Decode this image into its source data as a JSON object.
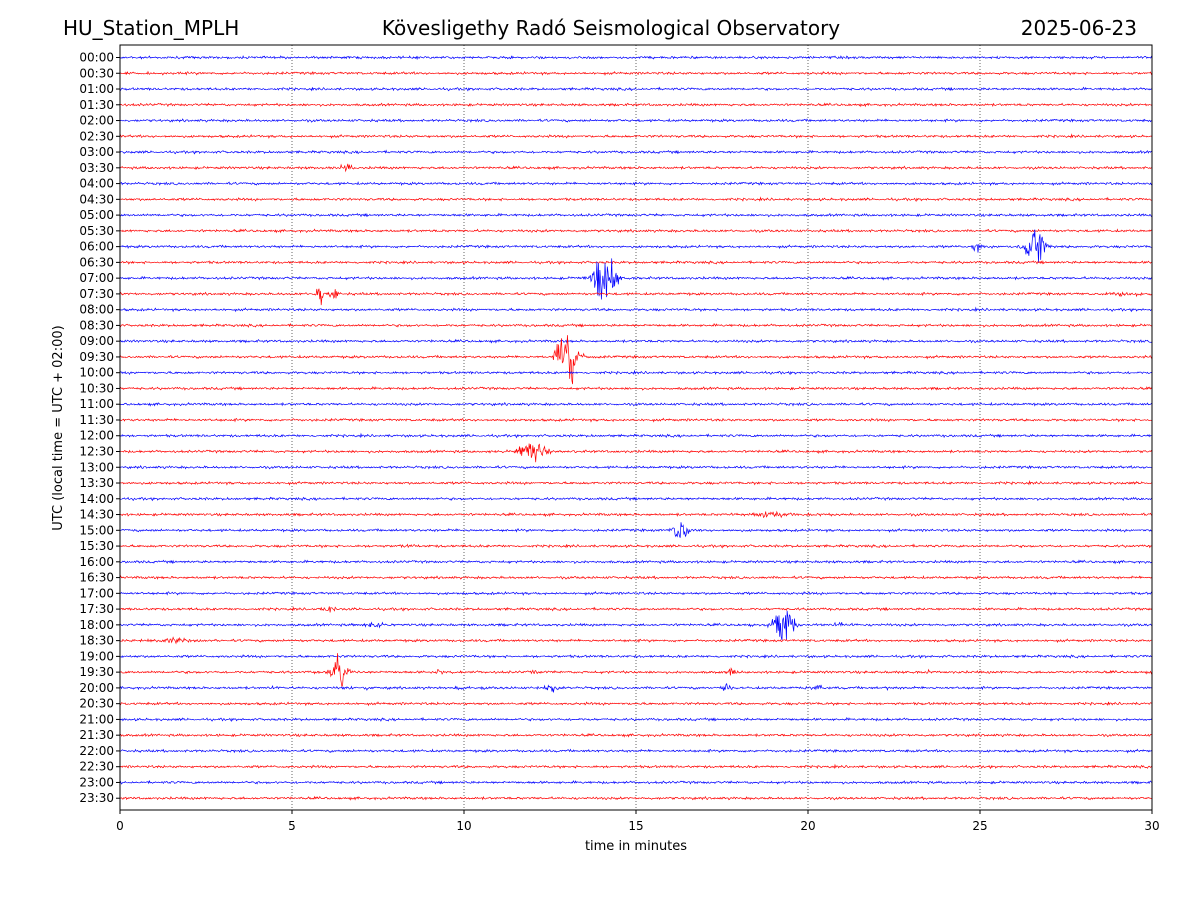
{
  "header": {
    "station": "HU_Station_MPLH",
    "observatory": "Kövesligethy Radó Seismological Observatory",
    "date": "2025-06-23"
  },
  "chart_data": {
    "type": "line",
    "title": "Kövesligethy Radó Seismological Observatory",
    "xlabel": "time in minutes",
    "ylabel": "UTC (local time = UTC + 02:00)",
    "xlim": [
      0,
      30
    ],
    "x_ticks": [
      0,
      5,
      10,
      15,
      20,
      25,
      30
    ],
    "grid": "vertical dotted at x ticks",
    "row_labels": [
      "00:00",
      "00:30",
      "01:00",
      "01:30",
      "02:00",
      "02:30",
      "03:00",
      "03:30",
      "04:00",
      "04:30",
      "05:00",
      "05:30",
      "06:00",
      "06:30",
      "07:00",
      "07:30",
      "08:00",
      "08:30",
      "09:00",
      "09:30",
      "10:00",
      "10:30",
      "11:00",
      "11:30",
      "12:00",
      "12:30",
      "13:00",
      "13:30",
      "14:00",
      "14:30",
      "15:00",
      "15:30",
      "16:00",
      "16:30",
      "17:00",
      "17:30",
      "18:00",
      "18:30",
      "19:00",
      "19:30",
      "20:00",
      "20:30",
      "21:00",
      "21:30",
      "22:00",
      "22:30",
      "23:00",
      "23:30"
    ],
    "colors": [
      "#0000ff",
      "#ff0000"
    ],
    "events": [
      {
        "row": "03:30",
        "minute": 6.6,
        "amp": 0.2,
        "dur": 0.5
      },
      {
        "row": "06:00",
        "minute": 24.9,
        "amp": 0.35,
        "dur": 0.3
      },
      {
        "row": "06:00",
        "minute": 26.6,
        "amp": 1.0,
        "dur": 0.8
      },
      {
        "row": "07:00",
        "minute": 14.1,
        "amp": 1.3,
        "dur": 0.9
      },
      {
        "row": "07:30",
        "minute": 5.8,
        "amp": 0.45,
        "dur": 0.3
      },
      {
        "row": "07:30",
        "minute": 6.2,
        "amp": 0.5,
        "dur": 0.3
      },
      {
        "row": "07:30",
        "minute": 29.2,
        "amp": 0.12,
        "dur": 1.2
      },
      {
        "row": "09:30",
        "minute": 13.0,
        "amp": 1.5,
        "dur": 0.9
      },
      {
        "row": "12:30",
        "minute": 12.0,
        "amp": 0.45,
        "dur": 1.2
      },
      {
        "row": "14:30",
        "minute": 19.0,
        "amp": 0.15,
        "dur": 1.5
      },
      {
        "row": "15:00",
        "minute": 16.3,
        "amp": 0.6,
        "dur": 0.6
      },
      {
        "row": "15:30",
        "minute": 8.5,
        "amp": 0.1,
        "dur": 0.4
      },
      {
        "row": "17:30",
        "minute": 6.1,
        "amp": 0.15,
        "dur": 0.6
      },
      {
        "row": "18:00",
        "minute": 7.4,
        "amp": 0.2,
        "dur": 0.6
      },
      {
        "row": "18:00",
        "minute": 19.3,
        "amp": 0.9,
        "dur": 0.9
      },
      {
        "row": "18:00",
        "minute": 20.9,
        "amp": 0.15,
        "dur": 0.5
      },
      {
        "row": "18:30",
        "minute": 1.5,
        "amp": 0.15,
        "dur": 1.2
      },
      {
        "row": "19:30",
        "minute": 6.4,
        "amp": 0.7,
        "dur": 0.7
      },
      {
        "row": "19:30",
        "minute": 9.3,
        "amp": 0.12,
        "dur": 0.4
      },
      {
        "row": "19:30",
        "minute": 12.1,
        "amp": 0.1,
        "dur": 0.3
      },
      {
        "row": "19:30",
        "minute": 17.8,
        "amp": 0.35,
        "dur": 0.3
      },
      {
        "row": "19:30",
        "minute": 23.4,
        "amp": 0.08,
        "dur": 0.5
      },
      {
        "row": "20:00",
        "minute": 4.5,
        "amp": 0.12,
        "dur": 0.3
      },
      {
        "row": "20:00",
        "minute": 7.1,
        "amp": 0.1,
        "dur": 0.6
      },
      {
        "row": "20:00",
        "minute": 9.9,
        "amp": 0.1,
        "dur": 0.6
      },
      {
        "row": "20:00",
        "minute": 12.6,
        "amp": 0.2,
        "dur": 0.6
      },
      {
        "row": "20:00",
        "minute": 17.6,
        "amp": 0.2,
        "dur": 0.5
      },
      {
        "row": "20:00",
        "minute": 20.3,
        "amp": 0.12,
        "dur": 0.5
      },
      {
        "row": "20:00",
        "minute": 22.3,
        "amp": 0.08,
        "dur": 0.2
      }
    ]
  }
}
